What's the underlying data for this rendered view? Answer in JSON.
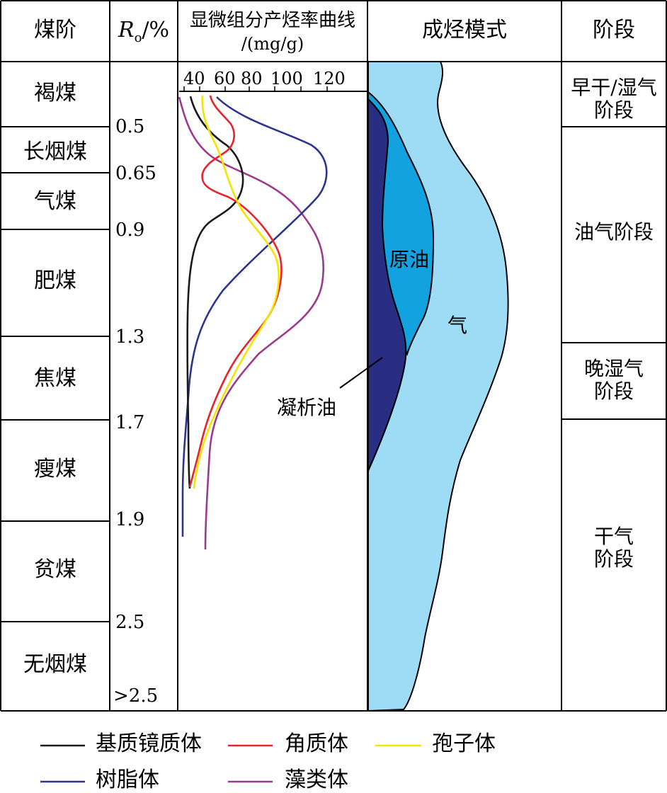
{
  "headers": {
    "rank": "煤阶",
    "ro_main": "R",
    "ro_sub": "o",
    "ro_unit": "/%",
    "curve_title_line1": "显微组分产烃率曲线",
    "curve_title_line2": "/(mg/g)",
    "model": "成烃模式",
    "stage": "阶段"
  },
  "coal_ranks": [
    "褐煤",
    "长烟煤",
    "气煤",
    "肥煤",
    "焦煤",
    "瘦煤",
    "贫煤",
    "无烟煤"
  ],
  "ro_values": [
    "0.5",
    "0.65",
    "0.9",
    "1.3",
    "1.7",
    "1.9",
    "2.5",
    ">2.5"
  ],
  "axis_ticks": [
    "40",
    "60",
    "80",
    "100",
    "120"
  ],
  "model_labels": {
    "crude_oil": "原油",
    "gas": "气",
    "condensate": "凝析油"
  },
  "stages": [
    {
      "line1": "早干/湿气",
      "line2": "阶段"
    },
    {
      "line1": "油气阶段",
      "line2": ""
    },
    {
      "line1": "晚湿气",
      "line2": "阶段"
    },
    {
      "line1": "干气",
      "line2": "阶段"
    }
  ],
  "legend": [
    {
      "label": "基质镜质体",
      "color": "#1a1a1a"
    },
    {
      "label": "角质体",
      "color": "#e8242a"
    },
    {
      "label": "孢子体",
      "color": "#f2e500"
    },
    {
      "label": "树脂体",
      "color": "#2b3590"
    },
    {
      "label": "藻类体",
      "color": "#9c3a8e"
    }
  ],
  "colors": {
    "gas_fill": "#9edcf5",
    "oil_fill": "#12a2e0",
    "condensate_fill": "#2a2e82"
  }
}
